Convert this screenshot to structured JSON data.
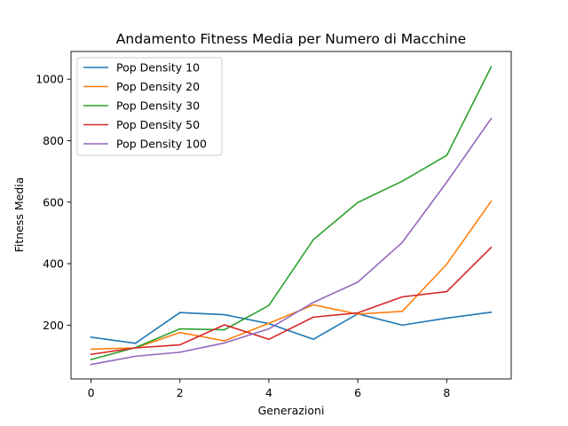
{
  "chart_data": {
    "type": "line",
    "title": "Andamento Fitness Media per Numero di Macchine",
    "xlabel": "Generazioni",
    "ylabel": "Fitness Media",
    "x": [
      0,
      1,
      2,
      3,
      4,
      5,
      6,
      7,
      8,
      9
    ],
    "xlim": [
      -0.45,
      9.45
    ],
    "ylim": [
      25,
      1090
    ],
    "xticks": [
      0,
      2,
      4,
      6,
      8
    ],
    "yticks": [
      200,
      400,
      600,
      800,
      1000
    ],
    "grid": false,
    "legend_position": "top-left",
    "series": [
      {
        "name": "Pop Density 10",
        "color": "#1f77b4",
        "values": [
          161,
          141,
          241,
          234,
          205,
          154,
          237,
          200,
          223,
          242
        ]
      },
      {
        "name": "Pop Density 20",
        "color": "#ff7f0e",
        "values": [
          122,
          126,
          176,
          149,
          206,
          266,
          236,
          245,
          398,
          603
        ]
      },
      {
        "name": "Pop Density 30",
        "color": "#2ca02c",
        "values": [
          88,
          127,
          188,
          185,
          264,
          478,
          599,
          668,
          752,
          1040
        ]
      },
      {
        "name": "Pop Density 50",
        "color": "#d62728",
        "values": [
          105,
          126,
          136,
          201,
          154,
          226,
          240,
          292,
          309,
          453
        ]
      },
      {
        "name": "Pop Density 100",
        "color": "#9467bd",
        "values": [
          72,
          99,
          112,
          142,
          188,
          274,
          340,
          469,
          665,
          872
        ]
      }
    ]
  }
}
